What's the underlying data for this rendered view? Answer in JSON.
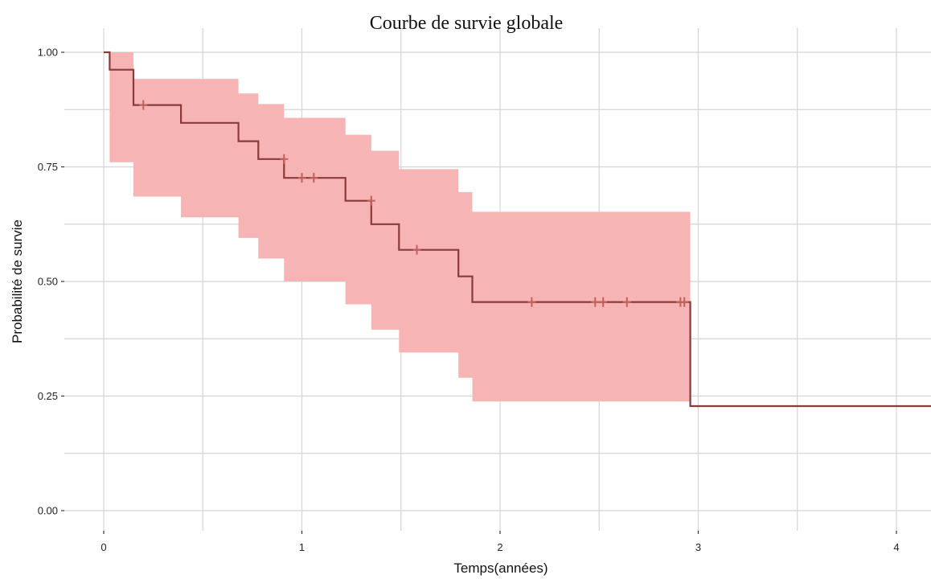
{
  "chart_data": {
    "type": "line",
    "title": "Courbe de survie globale",
    "xlabel": "Temps(années)",
    "ylabel": "Probabilité de survie",
    "xlim": [
      0,
      4.2
    ],
    "ylim": [
      0,
      1
    ],
    "x_ticks": [
      0,
      1,
      2,
      3,
      4
    ],
    "x_tick_labels": [
      "0",
      "1",
      "2",
      "3",
      "4"
    ],
    "y_ticks": [
      0,
      0.25,
      0.5,
      0.75,
      1
    ],
    "y_tick_labels": [
      "0.00",
      "0.25",
      "0.50",
      "0.75",
      "1.00"
    ],
    "grid": true,
    "series": [
      {
        "survival_steps": [
          [
            0,
            1.0
          ],
          [
            0.03,
            0.962
          ],
          [
            0.15,
            0.885
          ],
          [
            0.39,
            0.846
          ],
          [
            0.68,
            0.806
          ],
          [
            0.78,
            0.767
          ],
          [
            0.91,
            0.726
          ],
          [
            1.22,
            0.676
          ],
          [
            1.35,
            0.625
          ],
          [
            1.49,
            0.569
          ],
          [
            1.79,
            0.511
          ],
          [
            1.86,
            0.455
          ],
          [
            2.96,
            0.228
          ],
          [
            4.2,
            0.228
          ]
        ],
        "confidence_band": [
          [
            0,
            1.0,
            1.0
          ],
          [
            0.03,
            0.76,
            1.0
          ],
          [
            0.15,
            0.685,
            0.942
          ],
          [
            0.39,
            0.64,
            0.942
          ],
          [
            0.68,
            0.595,
            0.91
          ],
          [
            0.78,
            0.55,
            0.887
          ],
          [
            0.91,
            0.5,
            0.857
          ],
          [
            1.22,
            0.45,
            0.82
          ],
          [
            1.35,
            0.395,
            0.785
          ],
          [
            1.49,
            0.345,
            0.745
          ],
          [
            1.79,
            0.29,
            0.695
          ],
          [
            1.86,
            0.238,
            0.652
          ],
          [
            2.96,
            0.238,
            0.652
          ]
        ],
        "censor_marks": [
          [
            0.2,
            0.885
          ],
          [
            0.91,
            0.767
          ],
          [
            1.0,
            0.726
          ],
          [
            1.06,
            0.726
          ],
          [
            1.35,
            0.676
          ],
          [
            1.58,
            0.569
          ],
          [
            2.16,
            0.455
          ],
          [
            2.48,
            0.455
          ],
          [
            2.52,
            0.455
          ],
          [
            2.64,
            0.455
          ],
          [
            2.91,
            0.455
          ],
          [
            2.93,
            0.455
          ]
        ]
      }
    ],
    "colors": {
      "line": "#8a3a3a",
      "band": "#f7b4b4",
      "censor": "#c0605a",
      "grid": "#d4d4d4"
    }
  }
}
